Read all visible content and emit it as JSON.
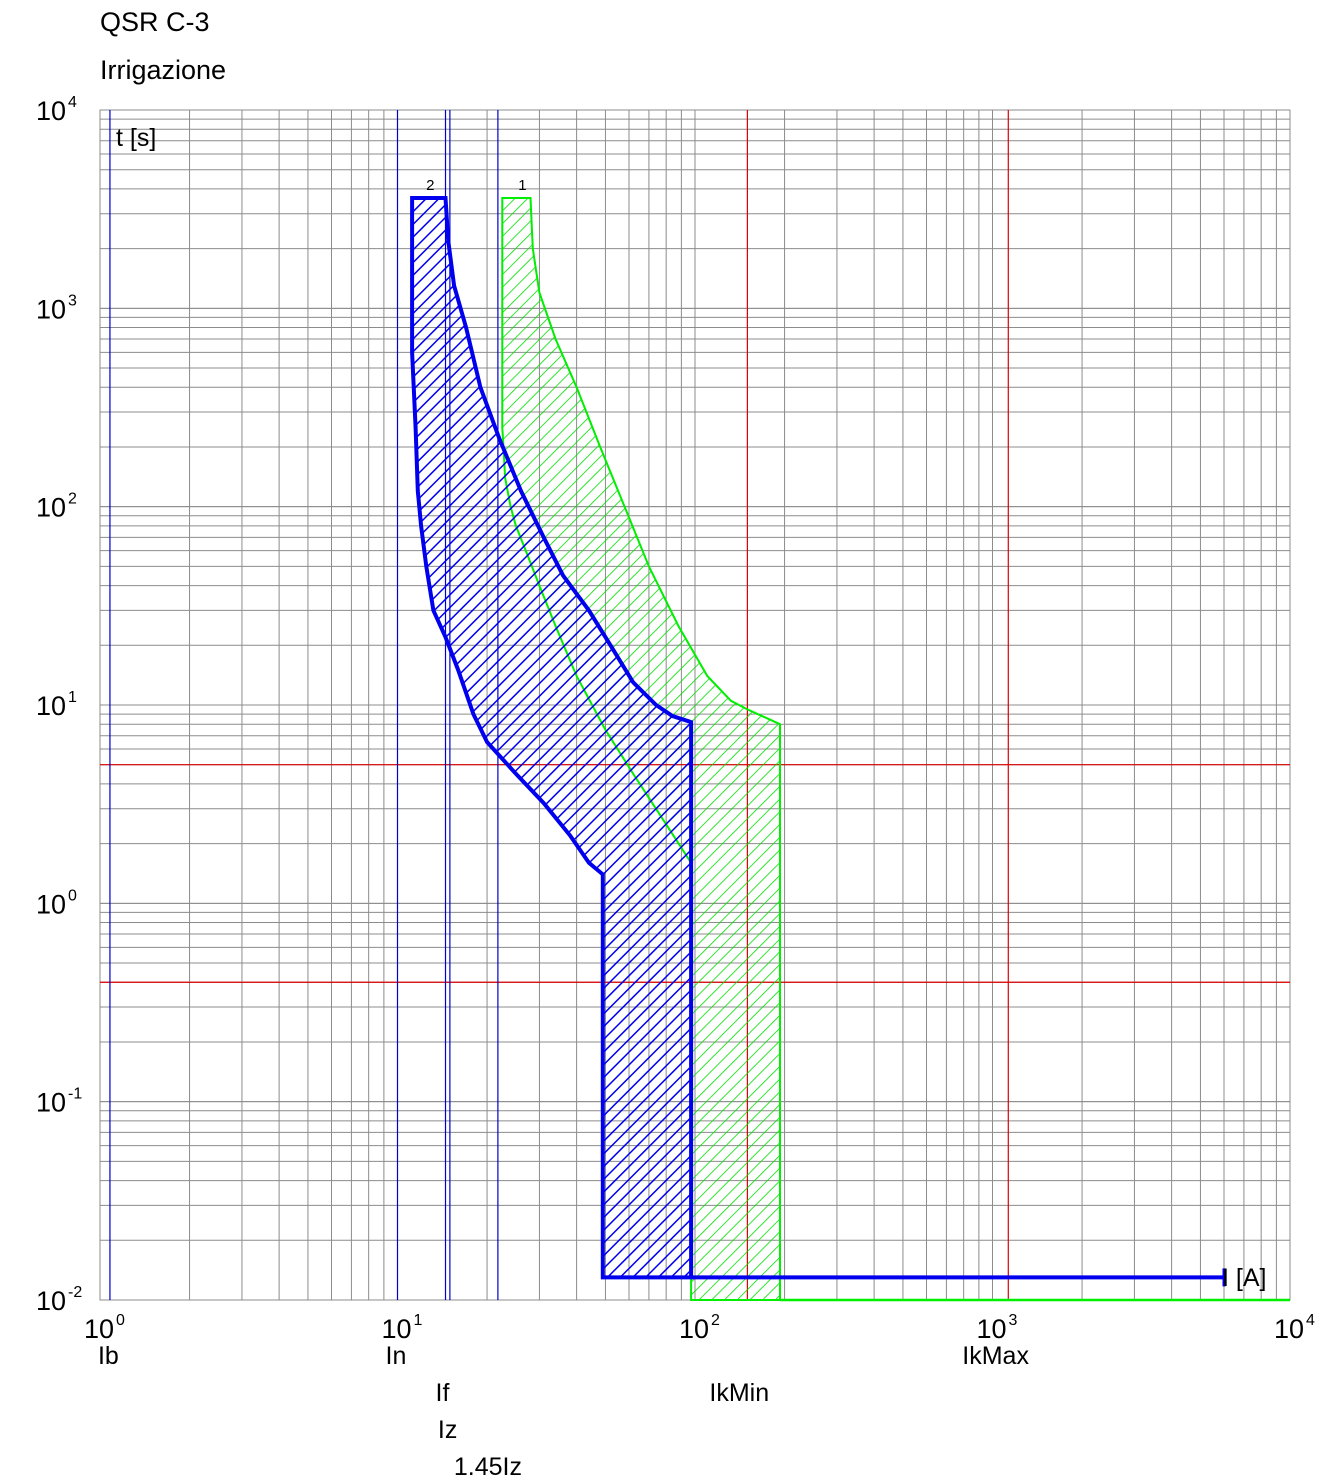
{
  "header": {
    "line1": "QSR C-3",
    "line2": "Irrigazione"
  },
  "chart_data": {
    "type": "line",
    "title": "",
    "xlabel": "I [A]",
    "ylabel": "t [s]",
    "xscale": "log",
    "yscale": "log",
    "xlim": [
      1,
      10000
    ],
    "ylim": [
      0.01,
      10000
    ],
    "grid": true,
    "x_ticks": [
      {
        "base": "10",
        "exp": "0"
      },
      {
        "base": "10",
        "exp": "1"
      },
      {
        "base": "10",
        "exp": "2"
      },
      {
        "base": "10",
        "exp": "3"
      },
      {
        "base": "10",
        "exp": "4"
      }
    ],
    "y_ticks": [
      {
        "base": "10",
        "exp": "4"
      },
      {
        "base": "10",
        "exp": "3"
      },
      {
        "base": "10",
        "exp": "2"
      },
      {
        "base": "10",
        "exp": "1"
      },
      {
        "base": "10",
        "exp": "0"
      },
      {
        "base": "10",
        "exp": "-1"
      },
      {
        "base": "10",
        "exp": "-2"
      }
    ],
    "vertical_markers": [
      {
        "label": "Ib",
        "value": 1.08,
        "color": "#0000cc"
      },
      {
        "label": "In",
        "value": 10,
        "color": "#0000cc"
      },
      {
        "label": "If",
        "value": 14.5,
        "color": "#0000cc"
      },
      {
        "label": "Iz",
        "value": 15,
        "color": "#0000cc"
      },
      {
        "label": "1.45Iz",
        "value": 21.75,
        "color": "#0000cc"
      },
      {
        "label": "IkMin",
        "value": 150,
        "color": "#dd0000"
      },
      {
        "label": "IkMax",
        "value": 1130,
        "color": "#dd0000"
      }
    ],
    "horizontal_markers": [
      {
        "value": 5,
        "color": "#dd0000"
      },
      {
        "value": 0.4,
        "color": "#dd0000"
      }
    ],
    "series": [
      {
        "name": "1",
        "color": "#00ee00",
        "band": [
          [
            22.5,
            3600
          ],
          [
            28,
            3600
          ],
          [
            28.5,
            2000
          ],
          [
            30,
            1200
          ],
          [
            34,
            700
          ],
          [
            40,
            400
          ],
          [
            48,
            200
          ],
          [
            58,
            100
          ],
          [
            70,
            50
          ],
          [
            88,
            25
          ],
          [
            110,
            14
          ],
          [
            132,
            10.5
          ],
          [
            150,
            9.5
          ],
          [
            193,
            8
          ],
          [
            193,
            0.01
          ],
          [
            97,
            0.01
          ],
          [
            97,
            0.013
          ],
          [
            97,
            1.6
          ],
          [
            80,
            2.5
          ],
          [
            62,
            4.5
          ],
          [
            50,
            7.5
          ],
          [
            40,
            14
          ],
          [
            34,
            25
          ],
          [
            30,
            40
          ],
          [
            27,
            60
          ],
          [
            25,
            80
          ],
          [
            24,
            100
          ],
          [
            23,
            140
          ],
          [
            22.8,
            180
          ],
          [
            22.5,
            250
          ],
          [
            22.5,
            3600
          ]
        ]
      },
      {
        "name": "2",
        "color": "#0000ee",
        "band": [
          [
            11.2,
            3600
          ],
          [
            14.5,
            3600
          ],
          [
            14.8,
            2200
          ],
          [
            15.5,
            1300
          ],
          [
            17,
            800
          ],
          [
            19,
            400
          ],
          [
            22,
            220
          ],
          [
            26,
            120
          ],
          [
            31,
            70
          ],
          [
            36,
            45
          ],
          [
            44,
            30
          ],
          [
            52,
            20
          ],
          [
            62,
            13
          ],
          [
            74,
            10
          ],
          [
            84,
            8.8
          ],
          [
            97,
            8.2
          ],
          [
            97,
            0.013
          ],
          [
            49,
            0.013
          ],
          [
            49,
            1.4
          ],
          [
            44,
            1.6
          ],
          [
            38,
            2.2
          ],
          [
            31,
            3.2
          ],
          [
            25,
            4.5
          ],
          [
            20,
            6.5
          ],
          [
            18,
            9
          ],
          [
            16,
            15
          ],
          [
            14.5,
            22
          ],
          [
            13.2,
            30
          ],
          [
            12.5,
            50
          ],
          [
            12,
            80
          ],
          [
            11.7,
            120
          ],
          [
            11.5,
            250
          ],
          [
            11.2,
            600
          ],
          [
            11.2,
            3600
          ]
        ],
        "tail": [
          [
            97,
            0.013
          ],
          [
            6000,
            0.013
          ]
        ]
      }
    ],
    "green_tail": [
      [
        193,
        0.01
      ],
      [
        10000,
        0.01
      ]
    ]
  }
}
